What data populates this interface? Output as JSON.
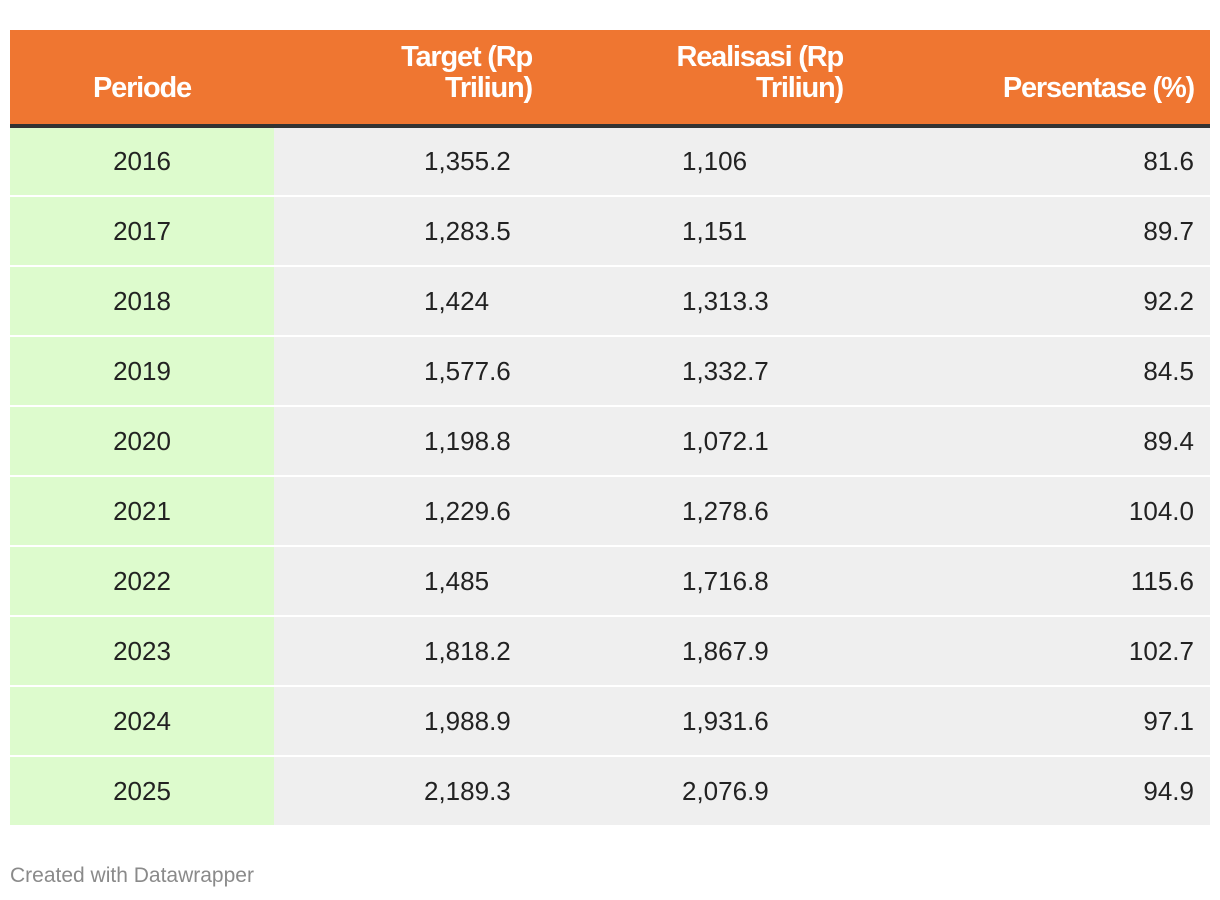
{
  "chart_data": {
    "type": "table",
    "columns": [
      "Periode",
      "Target (Rp Triliun)",
      "Realisasi (Rp Triliun)",
      "Persentase (%)"
    ],
    "rows": [
      {
        "periode": "2016",
        "target": "1,355.2",
        "realisasi": "1,106",
        "persentase": "81.6"
      },
      {
        "periode": "2017",
        "target": "1,283.5",
        "realisasi": "1,151",
        "persentase": "89.7"
      },
      {
        "periode": "2018",
        "target": "1,424",
        "realisasi": "1,313.3",
        "persentase": "92.2"
      },
      {
        "periode": "2019",
        "target": "1,577.6",
        "realisasi": "1,332.7",
        "persentase": "84.5"
      },
      {
        "periode": "2020",
        "target": "1,198.8",
        "realisasi": "1,072.1",
        "persentase": "89.4"
      },
      {
        "periode": "2021",
        "target": "1,229.6",
        "realisasi": "1,278.6",
        "persentase": "104.0"
      },
      {
        "periode": "2022",
        "target": "1,485",
        "realisasi": "1,716.8",
        "persentase": "115.6"
      },
      {
        "periode": "2023",
        "target": "1,818.2",
        "realisasi": "1,867.9",
        "persentase": "102.7"
      },
      {
        "periode": "2024",
        "target": "1,988.9",
        "realisasi": "1,931.6",
        "persentase": "97.1"
      },
      {
        "periode": "2025",
        "target": "2,189.3",
        "realisasi": "2,076.9",
        "persentase": "94.9"
      }
    ]
  },
  "header": {
    "periode": "Periode",
    "target_line1": "Target (Rp",
    "target_line2": "Triliun)",
    "realisasi_line1": "Realisasi (Rp",
    "realisasi_line2": "Triliun)",
    "persentase": "Persentase (%)"
  },
  "footer": {
    "credit": "Created with Datawrapper"
  },
  "colors": {
    "header_bg": "#ef7631",
    "periode_col_bg": "#ddfbcd",
    "cell_bg": "#efefef",
    "header_rule": "#333333"
  }
}
